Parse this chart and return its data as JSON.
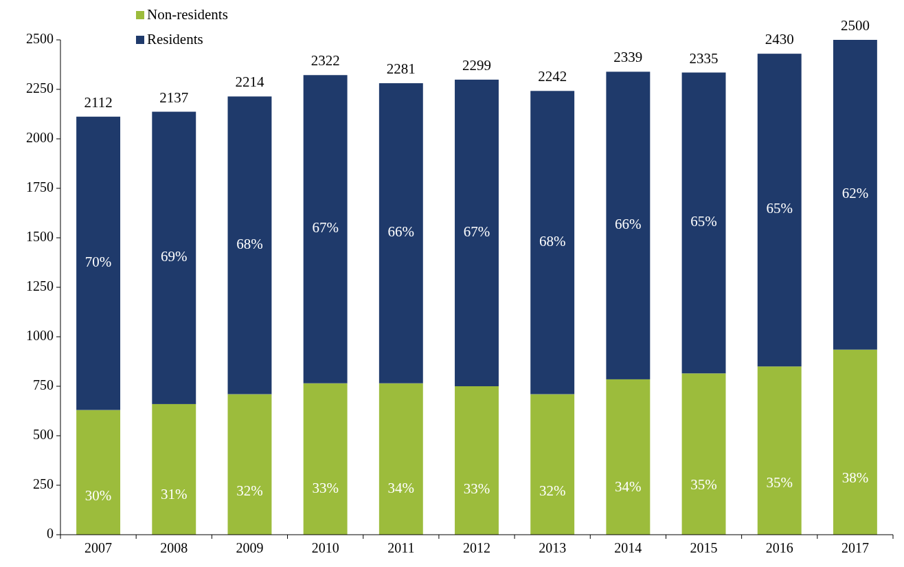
{
  "chart_data": {
    "type": "bar",
    "stacked": true,
    "categories": [
      "2007",
      "2008",
      "2009",
      "2010",
      "2011",
      "2012",
      "2013",
      "2014",
      "2015",
      "2016",
      "2017"
    ],
    "series": [
      {
        "name": "Non-residents",
        "color": "#9cbc3c",
        "values": [
          630,
          660,
          710,
          765,
          765,
          750,
          710,
          785,
          815,
          850,
          935
        ]
      },
      {
        "name": "Residents",
        "color": "#1f3a6b",
        "values": [
          1482,
          1477,
          1504,
          1557,
          1516,
          1549,
          1532,
          1554,
          1520,
          1580,
          1565
        ]
      }
    ],
    "totals": [
      "2112",
      "2137",
      "2214",
      "2322",
      "2281",
      "2299",
      "2242",
      "2339",
      "2335",
      "2430",
      "2500"
    ],
    "annotations": [
      "30%",
      "31%",
      "32%",
      "33%",
      "34%",
      "33%",
      "32%",
      "34%",
      "35%",
      "35%",
      "38%",
      "70%",
      "69%",
      "68%",
      "67%",
      "66%",
      "67%",
      "68%",
      "66%",
      "65%",
      "65%",
      "62%"
    ],
    "ylim": [
      0,
      2500
    ],
    "yticks": [
      0,
      250,
      500,
      750,
      1000,
      1250,
      1500,
      1750,
      2000,
      2250,
      2500
    ],
    "grid": false,
    "legend": "top left"
  }
}
